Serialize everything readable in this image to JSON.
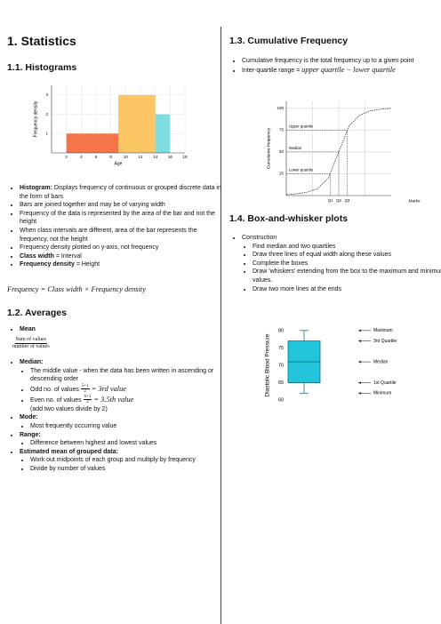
{
  "title": "1. Statistics",
  "histograms": {
    "heading": "1.1. Histograms",
    "chart": {
      "type": "histogram",
      "y_label": "Frequency density",
      "x_label": "Age",
      "bins": [
        2,
        9,
        14,
        16
      ],
      "values": [
        1,
        3,
        2
      ],
      "colors": [
        "#f4754a",
        "#fdc665",
        "#7fdde0"
      ],
      "xlim": [
        0,
        18
      ],
      "xticks": [
        2,
        4,
        6,
        8,
        10,
        12,
        14,
        16,
        18
      ],
      "ylim": [
        0,
        3.5
      ],
      "yticks": [
        1,
        2,
        3
      ],
      "grid": true
    },
    "bullets": [
      {
        "lead": "Histogram:",
        "text": "Displays frequency of continuous or grouped discrete data in the form of bars"
      },
      {
        "text": "Bars are joined together and may be of varying width"
      },
      {
        "text": "Frequency of the data is represented by the area of the bar and not the height"
      },
      {
        "text": "When class intervals are different, area of the bar represents the frequency, not the height"
      },
      {
        "text": "Frequency density plotted on y-axis, not frequency"
      },
      {
        "lead": "Class width",
        "text": "= Interval"
      },
      {
        "lead": "Frequency density",
        "text": "= Height"
      }
    ],
    "formula": "Frequency = Class width × Frequency density"
  },
  "averages": {
    "heading": "1.2. Averages",
    "mean": {
      "label": "Mean",
      "numerator": "Sum of values",
      "denominator": "number of values"
    },
    "median": {
      "label": "Median:",
      "definition": "The middle value - when the data has been written in ascending or descending order",
      "odd": {
        "text": "Odd no. of values",
        "numerator": "5+1",
        "denominator": "2",
        "result": "= 3rd value"
      },
      "even": {
        "text": "Even no. of values",
        "numerator": "6+1",
        "denominator": "2",
        "result": "= 3.5th value",
        "note": "(add two values divide by 2)"
      }
    },
    "mode": {
      "label": "Mode:",
      "text": "Most frequently occurring value"
    },
    "range": {
      "label": "Range:",
      "text": "Difference between highest and lowest values"
    },
    "grouped": {
      "label": "Estimated mean of grouped data:",
      "steps": [
        "Work out midpoints of each group and multiply by frequency",
        "Divide by number of values"
      ]
    }
  },
  "cumulative": {
    "heading": "1.3. Cumulative Frequency",
    "bullets": [
      "Cumulative frequency is the total frequency up to a given point"
    ],
    "iqr": {
      "text": "Inter-quartile range = ",
      "formula": "upper quartile − lower quartile"
    },
    "chart": {
      "type": "line",
      "y_label": "Cumulative frequency",
      "x_label": "Marks",
      "x": [
        0,
        1,
        2,
        3,
        4,
        5,
        6,
        7,
        8,
        9,
        10
      ],
      "values": [
        1,
        2,
        4,
        8,
        20,
        50,
        80,
        92,
        97,
        99,
        100
      ],
      "xlim": [
        0,
        10
      ],
      "ylim": [
        0,
        108
      ],
      "yticks": [
        25,
        50,
        75,
        100
      ],
      "grid": true,
      "quartiles": [
        {
          "label": "Upper quartile",
          "marker": "Q3",
          "x": 5.8,
          "y": 75
        },
        {
          "label": "Median",
          "marker": "Q2",
          "x": 5,
          "y": 50
        },
        {
          "label": "Lower quartile",
          "marker": "Q1",
          "x": 4.2,
          "y": 25
        }
      ]
    }
  },
  "boxplot": {
    "heading": "1.4. Box-and-whisker plots",
    "construction": "Construction",
    "steps": [
      "Find median and two quartiles",
      "Draw three lines of equal width along these values",
      "Complete the boxes",
      "Draw 'whiskers' extending from the box to the maximum and minimum values.",
      "Draw two more lines at the ends"
    ],
    "chart": {
      "type": "box",
      "y_label": "Diastolic Blood Pressure",
      "ylim": [
        58,
        82
      ],
      "yticks": [
        60,
        65,
        70,
        75,
        80
      ],
      "color": "#22c4dc",
      "stats": [
        {
          "label": "Maximum",
          "value": 80
        },
        {
          "label": "3rd Quartile",
          "value": 77
        },
        {
          "label": "Median",
          "value": 71
        },
        {
          "label": "1st Quartile",
          "value": 65
        },
        {
          "label": "Minimum",
          "value": 62
        }
      ]
    }
  }
}
